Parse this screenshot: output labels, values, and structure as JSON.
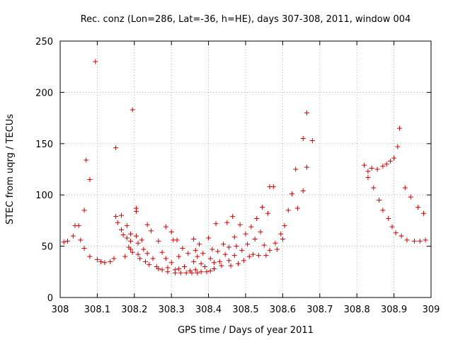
{
  "chart_data": {
    "type": "scatter",
    "title": "Rec. conz (Lon=286, Lat=-36, h=HE), days 307-308, 2011, window 004",
    "xlabel": "GPS time / Days of year 2011",
    "ylabel": "STEC from uqrg / TECUs",
    "xlim": [
      308,
      309
    ],
    "ylim": [
      0,
      250
    ],
    "x_ticks": [
      308,
      308.1,
      308.2,
      308.3,
      308.4,
      308.5,
      308.6,
      308.7,
      308.8,
      308.9,
      309
    ],
    "x_tick_labels": [
      "308",
      "308.1",
      "308.2",
      "308.3",
      "308.4",
      "308.5",
      "308.6",
      "308.7",
      "308.8",
      "308.9",
      "309"
    ],
    "y_ticks": [
      0,
      50,
      100,
      150,
      200,
      250
    ],
    "y_tick_labels": [
      "0",
      "50",
      "100",
      "150",
      "200",
      "250"
    ],
    "grid": true,
    "marker": "+",
    "color": "#cc0000",
    "points": [
      [
        308.01,
        54
      ],
      [
        308.02,
        55
      ],
      [
        308.035,
        60
      ],
      [
        308.04,
        70
      ],
      [
        308.05,
        70
      ],
      [
        308.055,
        56
      ],
      [
        308.065,
        48
      ],
      [
        308.065,
        85
      ],
      [
        308.07,
        134
      ],
      [
        308.08,
        115
      ],
      [
        308.08,
        40
      ],
      [
        308.095,
        230
      ],
      [
        308.1,
        37
      ],
      [
        308.11,
        35
      ],
      [
        308.12,
        34
      ],
      [
        308.135,
        35
      ],
      [
        308.145,
        38
      ],
      [
        308.15,
        146
      ],
      [
        308.15,
        79
      ],
      [
        308.155,
        73
      ],
      [
        308.165,
        80
      ],
      [
        308.165,
        66
      ],
      [
        308.17,
        61
      ],
      [
        308.175,
        40
      ],
      [
        308.18,
        70
      ],
      [
        308.18,
        58
      ],
      [
        308.185,
        49
      ],
      [
        308.19,
        62
      ],
      [
        308.19,
        55
      ],
      [
        308.19,
        47
      ],
      [
        308.195,
        44
      ],
      [
        308.195,
        183
      ],
      [
        308.205,
        87
      ],
      [
        308.205,
        84
      ],
      [
        308.205,
        60
      ],
      [
        308.21,
        53
      ],
      [
        308.21,
        42
      ],
      [
        308.215,
        38
      ],
      [
        308.22,
        56
      ],
      [
        308.225,
        47
      ],
      [
        308.23,
        35
      ],
      [
        308.235,
        71
      ],
      [
        308.235,
        43
      ],
      [
        308.24,
        32
      ],
      [
        308.245,
        65
      ],
      [
        308.25,
        38
      ],
      [
        308.26,
        30
      ],
      [
        308.265,
        55
      ],
      [
        308.265,
        28
      ],
      [
        308.275,
        44
      ],
      [
        308.275,
        27
      ],
      [
        308.285,
        69
      ],
      [
        308.285,
        38
      ],
      [
        308.29,
        29
      ],
      [
        308.29,
        25
      ],
      [
        308.3,
        64
      ],
      [
        308.3,
        34
      ],
      [
        308.305,
        56
      ],
      [
        308.31,
        27
      ],
      [
        308.31,
        24
      ],
      [
        308.315,
        56
      ],
      [
        308.32,
        40
      ],
      [
        308.32,
        28
      ],
      [
        308.325,
        24
      ],
      [
        308.33,
        48
      ],
      [
        308.335,
        30
      ],
      [
        308.34,
        24
      ],
      [
        308.345,
        43
      ],
      [
        308.35,
        26
      ],
      [
        308.355,
        24
      ],
      [
        308.36,
        57
      ],
      [
        308.36,
        35
      ],
      [
        308.365,
        46
      ],
      [
        308.365,
        27
      ],
      [
        308.37,
        40
      ],
      [
        308.37,
        24
      ],
      [
        308.375,
        52
      ],
      [
        308.38,
        33
      ],
      [
        308.38,
        25
      ],
      [
        308.385,
        43
      ],
      [
        308.39,
        30
      ],
      [
        308.395,
        25
      ],
      [
        308.4,
        58
      ],
      [
        308.405,
        26
      ],
      [
        308.405,
        38
      ],
      [
        308.41,
        47
      ],
      [
        308.415,
        34
      ],
      [
        308.415,
        28
      ],
      [
        308.42,
        72
      ],
      [
        308.425,
        45
      ],
      [
        308.43,
        35
      ],
      [
        308.435,
        31
      ],
      [
        308.44,
        52
      ],
      [
        308.445,
        42
      ],
      [
        308.45,
        73
      ],
      [
        308.455,
        49
      ],
      [
        308.455,
        36
      ],
      [
        308.46,
        31
      ],
      [
        308.465,
        79
      ],
      [
        308.47,
        59
      ],
      [
        308.47,
        41
      ],
      [
        308.475,
        50
      ],
      [
        308.48,
        33
      ],
      [
        308.485,
        71
      ],
      [
        308.49,
        46
      ],
      [
        308.495,
        36
      ],
      [
        308.5,
        62
      ],
      [
        308.505,
        52
      ],
      [
        308.51,
        40
      ],
      [
        308.515,
        69
      ],
      [
        308.52,
        42
      ],
      [
        308.525,
        57
      ],
      [
        308.53,
        77
      ],
      [
        308.535,
        41
      ],
      [
        308.54,
        64
      ],
      [
        308.545,
        88
      ],
      [
        308.55,
        51
      ],
      [
        308.555,
        41
      ],
      [
        308.56,
        82
      ],
      [
        308.565,
        46
      ],
      [
        308.565,
        108
      ],
      [
        308.575,
        108
      ],
      [
        308.58,
        53
      ],
      [
        308.585,
        47
      ],
      [
        308.595,
        62
      ],
      [
        308.6,
        57
      ],
      [
        308.605,
        70
      ],
      [
        308.615,
        85
      ],
      [
        308.625,
        101
      ],
      [
        308.635,
        125
      ],
      [
        308.64,
        87
      ],
      [
        308.655,
        155
      ],
      [
        308.655,
        104
      ],
      [
        308.665,
        180
      ],
      [
        308.665,
        127
      ],
      [
        308.68,
        153
      ],
      [
        308.82,
        129
      ],
      [
        308.83,
        123
      ],
      [
        308.83,
        117
      ],
      [
        308.84,
        126
      ],
      [
        308.845,
        107
      ],
      [
        308.855,
        125
      ],
      [
        308.86,
        95
      ],
      [
        308.87,
        128
      ],
      [
        308.87,
        85
      ],
      [
        308.88,
        130
      ],
      [
        308.885,
        77
      ],
      [
        308.89,
        133
      ],
      [
        308.895,
        69
      ],
      [
        308.9,
        136
      ],
      [
        308.905,
        63
      ],
      [
        308.91,
        147
      ],
      [
        308.915,
        165
      ],
      [
        308.92,
        60
      ],
      [
        308.93,
        107
      ],
      [
        308.935,
        56
      ],
      [
        308.945,
        98
      ],
      [
        308.955,
        55
      ],
      [
        308.965,
        88
      ],
      [
        308.97,
        55
      ],
      [
        308.98,
        82
      ],
      [
        308.985,
        56
      ]
    ]
  }
}
